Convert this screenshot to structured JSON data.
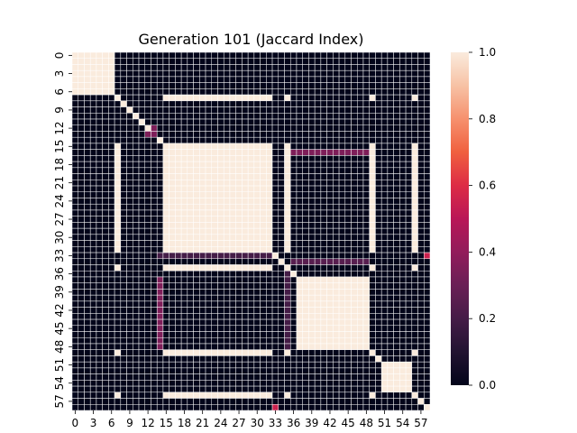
{
  "chart_data": {
    "type": "heatmap",
    "title": "Generation 101 (Jaccard Index)",
    "n": 59,
    "x_tick_labels": [
      "0",
      "3",
      "6",
      "9",
      "12",
      "15",
      "18",
      "21",
      "24",
      "27",
      "30",
      "33",
      "36",
      "39",
      "42",
      "45",
      "48",
      "51",
      "54",
      "57"
    ],
    "y_tick_labels": [
      "0",
      "3",
      "6",
      "9",
      "12",
      "15",
      "18",
      "21",
      "24",
      "27",
      "30",
      "33",
      "36",
      "39",
      "42",
      "45",
      "48",
      "51",
      "54",
      "57"
    ],
    "tick_step": 3,
    "value_range": [
      0,
      1
    ],
    "colorbar_ticks": [
      "0.0",
      "0.2",
      "0.4",
      "0.6",
      "0.8",
      "1.0"
    ],
    "colormap": "rocket",
    "cell_border_color": "#ffffff",
    "group_A": [
      0,
      1,
      2,
      3,
      4,
      5,
      6
    ],
    "group_B": [
      7,
      15,
      16,
      17,
      18,
      19,
      20,
      21,
      22,
      23,
      24,
      25,
      26,
      27,
      28,
      29,
      30,
      31,
      32,
      35,
      49,
      56,
      59
    ],
    "group_C": [
      37,
      38,
      39,
      40,
      41,
      42,
      43,
      44,
      45,
      46,
      47,
      48
    ],
    "group_D": [
      51,
      52,
      53,
      54,
      55
    ],
    "partial_values": [
      {
        "rows": [
          13
        ],
        "cols": [
          12,
          13
        ],
        "value": 0.35
      },
      {
        "rows": [
          12
        ],
        "cols": [
          13
        ],
        "value": 0.35
      },
      {
        "rows": [
          16
        ],
        "cols": [
          36,
          37,
          38,
          39,
          40,
          41,
          42,
          43,
          44,
          45,
          46,
          47,
          48
        ],
        "value": 0.35
      },
      {
        "rows": [
          37,
          38,
          39,
          40,
          41,
          42,
          43,
          44,
          45,
          46,
          47,
          48
        ],
        "cols": [
          14
        ],
        "value": 0.35
      },
      {
        "rows": [
          33
        ],
        "cols": [
          14,
          15,
          16,
          17,
          18,
          19,
          20,
          21,
          22,
          23,
          24,
          25,
          26,
          27,
          28,
          29,
          30,
          31,
          32
        ],
        "value": 0.2
      },
      {
        "rows": [
          34
        ],
        "cols": [
          36,
          37,
          38,
          39,
          40,
          41,
          42,
          43,
          44,
          45,
          46,
          47,
          48
        ],
        "value": 0.25
      },
      {
        "rows": [
          36,
          37,
          38,
          39,
          40,
          41,
          42,
          43,
          44,
          45,
          46,
          47,
          48
        ],
        "cols": [
          35
        ],
        "value": 0.2
      },
      {
        "rows": [
          33
        ],
        "cols": [
          58
        ],
        "value": 0.55
      },
      {
        "rows": [
          58
        ],
        "cols": [
          33
        ],
        "value": 0.55
      }
    ]
  }
}
